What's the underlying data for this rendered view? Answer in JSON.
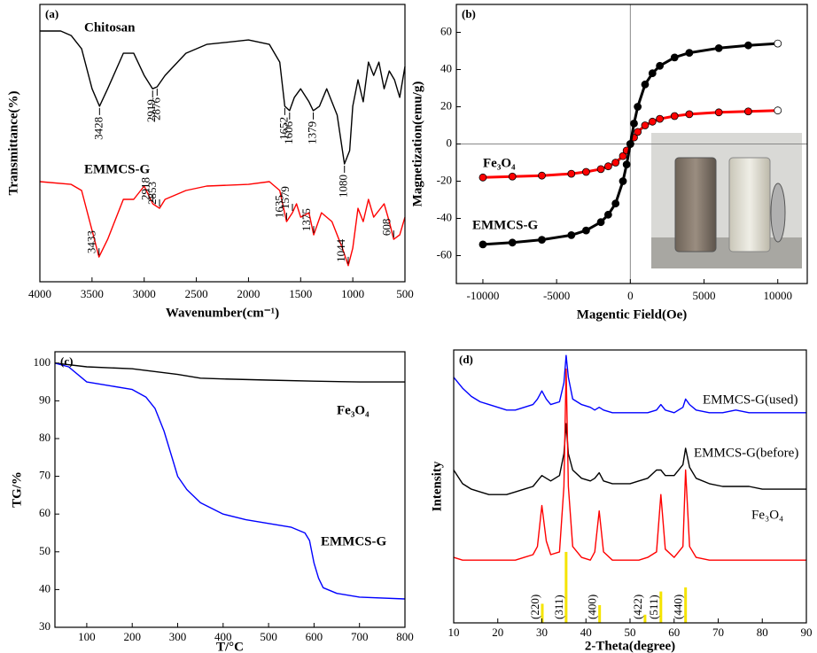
{
  "chart_data": [
    {
      "type": "line",
      "label": "(a)",
      "x_label": "Wavenumber(cm⁻¹)",
      "y_label": "Transmittance(%)",
      "xlim": [
        4000,
        500
      ],
      "ylim": [
        0,
        100
      ],
      "xticks": [
        4000,
        3500,
        3000,
        2500,
        2000,
        1500,
        1000,
        500
      ],
      "series": [
        {
          "name": "Chitosan",
          "color": "#000000",
          "x": [
            4000,
            3800,
            3700,
            3600,
            3500,
            3428,
            3350,
            3200,
            3100,
            3000,
            2919,
            2876,
            2800,
            2600,
            2400,
            2000,
            1800,
            1700,
            1652,
            1606,
            1560,
            1500,
            1420,
            1379,
            1320,
            1250,
            1150,
            1080,
            1030,
            1000,
            950,
            900,
            850,
            800,
            750,
            700,
            650,
            600,
            550,
            500
          ],
          "values": [
            90.4,
            90.4,
            88.8,
            84.0,
            69.6,
            63.3,
            69.6,
            82.4,
            82.4,
            74.4,
            69.6,
            70.3,
            74.4,
            82.4,
            85.6,
            87.2,
            85.6,
            79.2,
            63.3,
            61.7,
            66.5,
            69.6,
            64.9,
            61.7,
            63.3,
            69.6,
            60.1,
            42.5,
            47.3,
            63.3,
            72.8,
            64.9,
            79.2,
            74.4,
            79.2,
            69.6,
            76.0,
            72.8,
            66.5,
            77.6
          ],
          "peaks": [
            3428,
            2919,
            2876,
            1652,
            1606,
            1379,
            1080
          ]
        },
        {
          "name": "EMMCS-G",
          "color": "#ff0000",
          "x": [
            4000,
            3700,
            3600,
            3500,
            3433,
            3350,
            3200,
            3100,
            3000,
            2918,
            2853,
            2800,
            2600,
            2400,
            2000,
            1800,
            1700,
            1635,
            1579,
            1540,
            1500,
            1420,
            1375,
            1300,
            1200,
            1100,
            1044,
            1000,
            950,
            900,
            850,
            800,
            700,
            650,
            608,
            550,
            500
          ],
          "values": [
            36.1,
            35.1,
            32.9,
            18.5,
            8.9,
            15.3,
            29.7,
            29.7,
            34.5,
            28.1,
            26.5,
            29.7,
            32.9,
            34.5,
            35.1,
            36.1,
            32.9,
            21.7,
            24.9,
            28.1,
            23.3,
            24.9,
            16.9,
            24.9,
            21.7,
            12.1,
            5.8,
            12.1,
            26.5,
            21.7,
            29.7,
            23.3,
            28.1,
            21.7,
            15.3,
            16.9,
            23.3
          ],
          "peaks": [
            3433,
            2918,
            2853,
            1635,
            1579,
            1375,
            1044,
            608
          ]
        }
      ]
    },
    {
      "type": "line",
      "label": "(b)",
      "x_label": "Magentic Field(Oe)",
      "y_label": "Magnetization(emu/g)",
      "xlim": [
        -11800,
        12000
      ],
      "ylim": [
        -75,
        75
      ],
      "xticks": [
        -10000,
        -5000,
        0,
        5000,
        10000
      ],
      "yticks": [
        -60,
        -40,
        -20,
        0,
        20,
        40,
        60
      ],
      "markers": true,
      "x": [
        -10000,
        -8000,
        -6000,
        -4000,
        -3000,
        -2000,
        -1500,
        -1000,
        -500,
        -250,
        0,
        250,
        500,
        1000,
        1500,
        2000,
        3000,
        4000,
        6000,
        8000,
        10000
      ],
      "series": [
        {
          "name": "Fe₃O₄",
          "color": "#ff0000",
          "values": [
            -18,
            -17.5,
            -17,
            -16,
            -15,
            -13.5,
            -12,
            -10,
            -6.5,
            -3.5,
            0,
            3.5,
            6.5,
            10,
            12,
            13.5,
            15,
            16,
            17,
            17.5,
            18
          ]
        },
        {
          "name": "EMMCS-G",
          "color": "#000000",
          "values": [
            -54,
            -53,
            -51.5,
            -49,
            -46.5,
            -42,
            -38,
            -32,
            -20,
            -11,
            0,
            11,
            20,
            32,
            38,
            42,
            46.5,
            49,
            51.5,
            53,
            54
          ]
        }
      ]
    },
    {
      "type": "line",
      "label": "(c)",
      "x_label": "T/°C",
      "y_label": "TG/%",
      "xlim": [
        30,
        800
      ],
      "ylim": [
        30,
        103
      ],
      "xticks": [
        100,
        200,
        300,
        400,
        500,
        600,
        700,
        800
      ],
      "yticks": [
        30,
        40,
        50,
        60,
        70,
        80,
        90,
        100
      ],
      "series": [
        {
          "name": "Fe₃O₄",
          "color": "#000000",
          "x": [
            30,
            100,
            200,
            300,
            350,
            400,
            500,
            600,
            700,
            800
          ],
          "values": [
            100,
            99,
            98.5,
            97,
            96,
            95.8,
            95.5,
            95.2,
            95,
            95
          ]
        },
        {
          "name": "EMMCS-G",
          "color": "#0000ff",
          "x": [
            30,
            60,
            100,
            150,
            200,
            230,
            250,
            270,
            290,
            300,
            320,
            350,
            400,
            450,
            500,
            550,
            580,
            590,
            600,
            610,
            620,
            650,
            700,
            800
          ],
          "values": [
            100,
            99,
            95,
            94,
            93,
            91,
            88,
            82,
            74,
            70,
            66.5,
            63,
            60,
            58.5,
            57.5,
            56.5,
            55,
            53,
            47,
            43,
            40.5,
            39,
            38,
            37.5
          ]
        }
      ]
    },
    {
      "type": "line",
      "label": "(d)",
      "x_label": "2-Theta(degree)",
      "y_label": "Intensity",
      "xlim": [
        10,
        90
      ],
      "ylim": [
        0,
        100
      ],
      "xticks": [
        10,
        20,
        30,
        40,
        50,
        60,
        70,
        80,
        90
      ],
      "x": [
        10,
        12,
        14,
        16,
        18,
        20,
        22,
        24,
        26,
        28,
        29,
        30,
        31,
        32,
        34,
        35,
        35.5,
        36,
        37,
        39,
        41,
        42,
        43,
        44,
        46,
        48,
        50,
        52,
        54,
        56,
        57,
        58,
        60,
        62,
        62.6,
        63.5,
        65,
        68,
        71,
        74,
        77,
        80,
        83,
        86,
        90
      ],
      "series": [
        {
          "name": "EMMCS-G(used)",
          "color": "#0000ff",
          "values": [
            90,
            86,
            83,
            81,
            80,
            79,
            78,
            78,
            79,
            80,
            82,
            85,
            82,
            80,
            81,
            88,
            98,
            90,
            82,
            80,
            79,
            78,
            79,
            78,
            77,
            77,
            77,
            77,
            77,
            78,
            80,
            78,
            77,
            79,
            82,
            80,
            78,
            77,
            77,
            78,
            77,
            77,
            77,
            77,
            77
          ]
        },
        {
          "name": "EMMCS-G(before)",
          "color": "#000000",
          "values": [
            56,
            51,
            49,
            48,
            47,
            47,
            47,
            48,
            49,
            50,
            52,
            54,
            53,
            52,
            54,
            62,
            73,
            62,
            56,
            53,
            52,
            53,
            55,
            52,
            51,
            51,
            51,
            52,
            53,
            56,
            56,
            54,
            54,
            58,
            64,
            57,
            53,
            51,
            50,
            50,
            50,
            49,
            49,
            49,
            49
          ]
        },
        {
          "name": "Fe₃O₄",
          "color": "#ff0000",
          "values": [
            24,
            23,
            23,
            23,
            23,
            23,
            23,
            23,
            24,
            25,
            28,
            43,
            30,
            25,
            26,
            50,
            93,
            50,
            28,
            24,
            23,
            26,
            41,
            26,
            23,
            23,
            23,
            23,
            24,
            26,
            47,
            27,
            24,
            28,
            56,
            28,
            24,
            23,
            23,
            23,
            23,
            23,
            23,
            23,
            23
          ]
        }
      ],
      "reference": {
        "color": "#f5e400",
        "x": [
          30.1,
          35.5,
          43.1,
          53.4,
          57,
          62.6
        ],
        "values": [
          7,
          26,
          6.5,
          3,
          11.5,
          13
        ],
        "labels": [
          "(220)",
          "(311)",
          "(400)",
          "(422)",
          "(511)",
          "(440)"
        ]
      }
    }
  ]
}
